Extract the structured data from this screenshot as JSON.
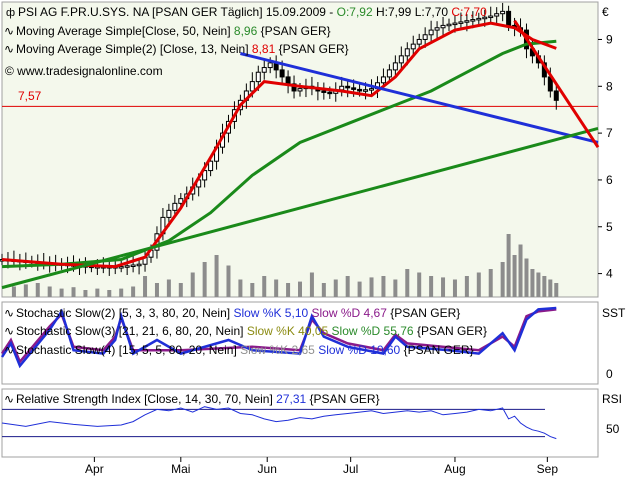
{
  "main_panel": {
    "header_line1": {
      "symbol_icon": "candlestick-icon",
      "instrument": "PSI AG F.PR.U.SYS. NA [PSAN GER  Täglich]",
      "date": "15.09.2009",
      "open": "O:7,92",
      "high": "H:7,99",
      "low": "L:7,70",
      "close": "C:7,70"
    },
    "ma50": {
      "label": "Moving Average Simple[Close, 50, Nein]",
      "value": "8,96",
      "source": "{PSAN GER}"
    },
    "ma13": {
      "label": "Moving Average Simple(2) [Close, 13, Nein]",
      "value": "8,81",
      "source": "{PSAN GER}"
    },
    "watermark": "© www.tradesignalonline.com",
    "hline_label": "7,57",
    "currency": "€",
    "y_ticks": [
      "9",
      "8",
      "7",
      "6",
      "5",
      "4"
    ]
  },
  "stoch_panel": {
    "title": "SST",
    "y_tick": "0",
    "line1": {
      "label": "Stochastic Slow(2) [5, 3, 3, 80, 20, Nein]",
      "k": "Slow %K 5,10",
      "d": "Slow %D 4,67",
      "source": "{PSAN GER}"
    },
    "line2": {
      "label": "Stochastic Slow(3) [21, 21, 6, 80, 20, Nein]",
      "k": "Slow %K 40,05",
      "d": "Slow %D 55,76",
      "source": "{PSAN GER}"
    },
    "line3": {
      "label": "Stochastic Slow(4) [15, 5, 5, 80, 20, Nein]",
      "k": "Slow %K 2,65",
      "d": "Slow %D 10,60",
      "source": "{PSAN GER}"
    }
  },
  "rsi_panel": {
    "title": "RSI",
    "y_tick": "50",
    "label": "Relative Strength Index [Close, 14, 30, 70, Nein]",
    "value": "27,31",
    "source": "{PSAN GER}"
  },
  "x_axis": [
    "Apr",
    "Mai",
    "Jun",
    "Jul",
    "Aug",
    "Sep"
  ],
  "colors": {
    "plot_bg": "#f4f8ec",
    "ma13": "#e00000",
    "ma50": "#1a8a1a",
    "trend_blue": "#1f2fd8",
    "trend_green": "#1a8a1a",
    "stoch_k": "#1f2fd8",
    "stoch_d": "#8a1a8a",
    "rsi": "#1f2fd8",
    "hline": "#e00000",
    "text_green": "#2a8a2a",
    "text_red": "#e00000",
    "text_blue": "#1f2fd8",
    "text_purple": "#8a1a8a",
    "text_olive": "#8a8a10",
    "text_gray": "#909090"
  },
  "chart_data": {
    "type": "candlestick",
    "x_labels": [
      "Apr",
      "Mai",
      "Jun",
      "Jul",
      "Aug",
      "Sep"
    ],
    "ylim": [
      3.5,
      9.8
    ],
    "y_ticks": [
      4,
      5,
      6,
      7,
      8,
      9
    ],
    "price_path": [
      [
        0,
        4.3
      ],
      [
        5,
        4.25
      ],
      [
        10,
        4.2
      ],
      [
        15,
        4.15
      ],
      [
        20,
        4.15
      ],
      [
        23,
        4.2
      ],
      [
        25,
        4.5
      ],
      [
        27,
        5.2
      ],
      [
        29,
        5.5
      ],
      [
        31,
        5.7
      ],
      [
        33,
        6.0
      ],
      [
        35,
        6.4
      ],
      [
        37,
        7.0
      ],
      [
        39,
        7.5
      ],
      [
        41,
        7.9
      ],
      [
        43,
        8.3
      ],
      [
        45,
        8.5
      ],
      [
        47,
        8.2
      ],
      [
        49,
        7.9
      ],
      [
        51,
        8.0
      ],
      [
        53,
        7.9
      ],
      [
        55,
        7.85
      ],
      [
        57,
        8.0
      ],
      [
        60,
        7.9
      ],
      [
        62,
        7.95
      ],
      [
        64,
        8.2
      ],
      [
        66,
        8.5
      ],
      [
        68,
        8.8
      ],
      [
        70,
        9.0
      ],
      [
        72,
        9.2
      ],
      [
        74,
        9.3
      ],
      [
        76,
        9.35
      ],
      [
        78,
        9.4
      ],
      [
        80,
        9.45
      ],
      [
        82,
        9.5
      ],
      [
        84,
        9.6
      ],
      [
        85,
        9.3
      ],
      [
        87,
        9.2
      ],
      [
        88,
        8.8
      ],
      [
        90,
        8.5
      ],
      [
        92,
        7.9
      ],
      [
        93,
        7.7
      ]
    ],
    "moving_average_50": [
      [
        0,
        4.15
      ],
      [
        10,
        4.2
      ],
      [
        20,
        4.3
      ],
      [
        28,
        4.7
      ],
      [
        35,
        5.3
      ],
      [
        42,
        6.1
      ],
      [
        50,
        6.8
      ],
      [
        58,
        7.2
      ],
      [
        66,
        7.6
      ],
      [
        72,
        7.9
      ],
      [
        78,
        8.3
      ],
      [
        84,
        8.7
      ],
      [
        88,
        8.9
      ],
      [
        93,
        8.96
      ]
    ],
    "moving_average_13": [
      [
        0,
        4.3
      ],
      [
        10,
        4.2
      ],
      [
        19,
        4.15
      ],
      [
        24,
        4.35
      ],
      [
        30,
        5.4
      ],
      [
        36,
        6.7
      ],
      [
        40,
        7.6
      ],
      [
        44,
        8.1
      ],
      [
        50,
        8.0
      ],
      [
        57,
        7.9
      ],
      [
        62,
        7.8
      ],
      [
        66,
        8.2
      ],
      [
        70,
        8.8
      ],
      [
        76,
        9.2
      ],
      [
        82,
        9.35
      ],
      [
        86,
        9.25
      ],
      [
        89,
        9.0
      ],
      [
        93,
        8.81
      ]
    ],
    "trendlines": [
      {
        "color": "blue",
        "from": [
          40,
          8.7
        ],
        "to": [
          100,
          6.8
        ]
      },
      {
        "color": "green",
        "from": [
          0,
          3.7
        ],
        "to": [
          100,
          7.1
        ]
      },
      {
        "color": "red",
        "from": [
          86,
          9.4
        ],
        "to": [
          100,
          6.7
        ]
      }
    ],
    "horizontal_line": 7.57,
    "volume": [
      [
        2,
        0.15
      ],
      [
        4,
        0.18
      ],
      [
        6,
        0.2
      ],
      [
        8,
        0.15
      ],
      [
        10,
        0.12
      ],
      [
        12,
        0.14
      ],
      [
        14,
        0.1
      ],
      [
        16,
        0.12
      ],
      [
        18,
        0.1
      ],
      [
        20,
        0.12
      ],
      [
        22,
        0.15
      ],
      [
        24,
        0.3
      ],
      [
        26,
        0.2
      ],
      [
        28,
        0.25
      ],
      [
        30,
        0.2
      ],
      [
        32,
        0.35
      ],
      [
        34,
        0.5
      ],
      [
        36,
        0.6
      ],
      [
        38,
        0.45
      ],
      [
        40,
        0.25
      ],
      [
        42,
        0.2
      ],
      [
        44,
        0.3
      ],
      [
        46,
        0.25
      ],
      [
        48,
        0.2
      ],
      [
        50,
        0.22
      ],
      [
        52,
        0.35
      ],
      [
        54,
        0.2
      ],
      [
        56,
        0.25
      ],
      [
        58,
        0.3
      ],
      [
        60,
        0.22
      ],
      [
        62,
        0.28
      ],
      [
        64,
        0.3
      ],
      [
        66,
        0.25
      ],
      [
        68,
        0.4
      ],
      [
        70,
        0.35
      ],
      [
        72,
        0.3
      ],
      [
        74,
        0.28
      ],
      [
        76,
        0.25
      ],
      [
        78,
        0.3
      ],
      [
        80,
        0.35
      ],
      [
        82,
        0.4
      ],
      [
        84,
        0.5
      ],
      [
        85,
        0.9
      ],
      [
        86,
        0.6
      ],
      [
        87,
        0.75
      ],
      [
        88,
        0.55
      ],
      [
        89,
        0.4
      ],
      [
        90,
        0.35
      ],
      [
        91,
        0.3
      ],
      [
        92,
        0.25
      ],
      [
        93,
        0.2
      ]
    ],
    "stochastic": {
      "k": [
        [
          0,
          0.25
        ],
        [
          1.5,
          0.45
        ],
        [
          3,
          0.12
        ],
        [
          8,
          0.65
        ],
        [
          10,
          0.92
        ],
        [
          12,
          0.35
        ],
        [
          17,
          0.3
        ],
        [
          19,
          0.5
        ],
        [
          20,
          0.85
        ],
        [
          22,
          0.3
        ],
        [
          26,
          0.5
        ],
        [
          30,
          0.3
        ],
        [
          38,
          0.5
        ],
        [
          42,
          0.35
        ],
        [
          50,
          0.3
        ],
        [
          52,
          0.85
        ],
        [
          54,
          0.55
        ],
        [
          58,
          0.4
        ],
        [
          64,
          0.3
        ],
        [
          66,
          0.55
        ],
        [
          68,
          0.4
        ],
        [
          75,
          0.35
        ],
        [
          80,
          0.3
        ],
        [
          84,
          0.6
        ],
        [
          86,
          0.35
        ],
        [
          88,
          0.8
        ],
        [
          90,
          0.95
        ],
        [
          93,
          0.97
        ]
      ],
      "d": [
        [
          0,
          0.3
        ],
        [
          1.5,
          0.5
        ],
        [
          3,
          0.18
        ],
        [
          8,
          0.7
        ],
        [
          10,
          0.88
        ],
        [
          12,
          0.4
        ],
        [
          17,
          0.35
        ],
        [
          19,
          0.55
        ],
        [
          20,
          0.82
        ],
        [
          22,
          0.35
        ],
        [
          30,
          0.35
        ],
        [
          42,
          0.4
        ],
        [
          50,
          0.35
        ],
        [
          52,
          0.8
        ],
        [
          54,
          0.6
        ],
        [
          58,
          0.45
        ],
        [
          64,
          0.35
        ],
        [
          66,
          0.58
        ],
        [
          68,
          0.45
        ],
        [
          80,
          0.35
        ],
        [
          84,
          0.55
        ],
        [
          86,
          0.4
        ],
        [
          88,
          0.85
        ],
        [
          90,
          0.92
        ],
        [
          93,
          0.95
        ]
      ]
    },
    "rsi": {
      "value": 27.31,
      "levels": [
        30,
        70
      ],
      "path": [
        [
          0,
          50
        ],
        [
          4,
          45
        ],
        [
          8,
          52
        ],
        [
          12,
          48
        ],
        [
          16,
          45
        ],
        [
          20,
          47
        ],
        [
          22,
          52
        ],
        [
          24,
          62
        ],
        [
          26,
          70
        ],
        [
          28,
          68
        ],
        [
          30,
          72
        ],
        [
          32,
          66
        ],
        [
          34,
          74
        ],
        [
          36,
          70
        ],
        [
          38,
          72
        ],
        [
          40,
          64
        ],
        [
          42,
          62
        ],
        [
          44,
          56
        ],
        [
          46,
          52
        ],
        [
          48,
          54
        ],
        [
          50,
          58
        ],
        [
          52,
          56
        ],
        [
          54,
          60
        ],
        [
          56,
          62
        ],
        [
          58,
          64
        ],
        [
          60,
          66
        ],
        [
          62,
          68
        ],
        [
          64,
          64
        ],
        [
          66,
          66
        ],
        [
          68,
          68
        ],
        [
          70,
          66
        ],
        [
          72,
          68
        ],
        [
          74,
          62
        ],
        [
          76,
          64
        ],
        [
          78,
          66
        ],
        [
          80,
          70
        ],
        [
          82,
          68
        ],
        [
          84,
          72
        ],
        [
          85,
          56
        ],
        [
          86,
          60
        ],
        [
          87,
          50
        ],
        [
          88,
          44
        ],
        [
          89,
          40
        ],
        [
          90,
          38
        ],
        [
          91,
          35
        ],
        [
          92,
          30
        ],
        [
          93,
          27
        ]
      ]
    }
  }
}
